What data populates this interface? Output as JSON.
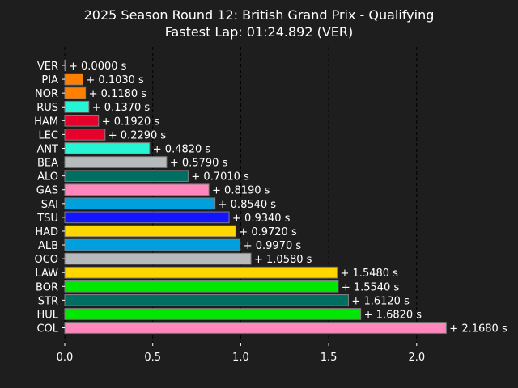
{
  "chart_data": {
    "type": "bar",
    "orientation": "horizontal",
    "title": "2025 Season Round 12: British Grand Prix - Qualifying",
    "subtitle": "Fastest Lap: 01:24.892 (VER)",
    "xlabel": "",
    "ylabel": "",
    "xlim": [
      0,
      2.3
    ],
    "x_ticks": [
      0.0,
      0.5,
      1.0,
      1.5,
      2.0
    ],
    "x_tick_labels": [
      "0.0",
      "0.5",
      "1.0",
      "1.5",
      "2.0"
    ],
    "grid": "vertical dashed",
    "categories": [
      "VER",
      "PIA",
      "NOR",
      "RUS",
      "HAM",
      "LEC",
      "ANT",
      "BEA",
      "ALO",
      "GAS",
      "SAI",
      "TSU",
      "HAD",
      "ALB",
      "OCO",
      "LAW",
      "BOR",
      "STR",
      "HUL",
      "COL"
    ],
    "values": [
      0.0,
      0.103,
      0.118,
      0.137,
      0.192,
      0.229,
      0.482,
      0.579,
      0.701,
      0.819,
      0.854,
      0.934,
      0.972,
      0.997,
      1.058,
      1.548,
      1.554,
      1.612,
      1.682,
      2.168
    ],
    "labels": [
      "+ 0.0000 s",
      "+ 0.1030 s",
      "+ 0.1180 s",
      "+ 0.1370 s",
      "+ 0.1920 s",
      "+ 0.2290 s",
      "+ 0.4820 s",
      "+ 0.5790 s",
      "+ 0.7010 s",
      "+ 0.8190 s",
      "+ 0.8540 s",
      "+ 0.9340 s",
      "+ 0.9720 s",
      "+ 0.9970 s",
      "+ 1.0580 s",
      "+ 1.5480 s",
      "+ 1.5540 s",
      "+ 1.6120 s",
      "+ 1.6820 s",
      "+ 2.1680 s"
    ],
    "colors": [
      "#1e41ff",
      "#ff8000",
      "#ff8000",
      "#27f4d2",
      "#e8002d",
      "#e8002d",
      "#27f4d2",
      "#b6babd",
      "#006f62",
      "#ff87bc",
      "#00a0de",
      "#1414ff",
      "#ffd700",
      "#00a0de",
      "#b6babd",
      "#ffd700",
      "#00e701",
      "#006f62",
      "#00e701",
      "#ff87bc"
    ]
  }
}
